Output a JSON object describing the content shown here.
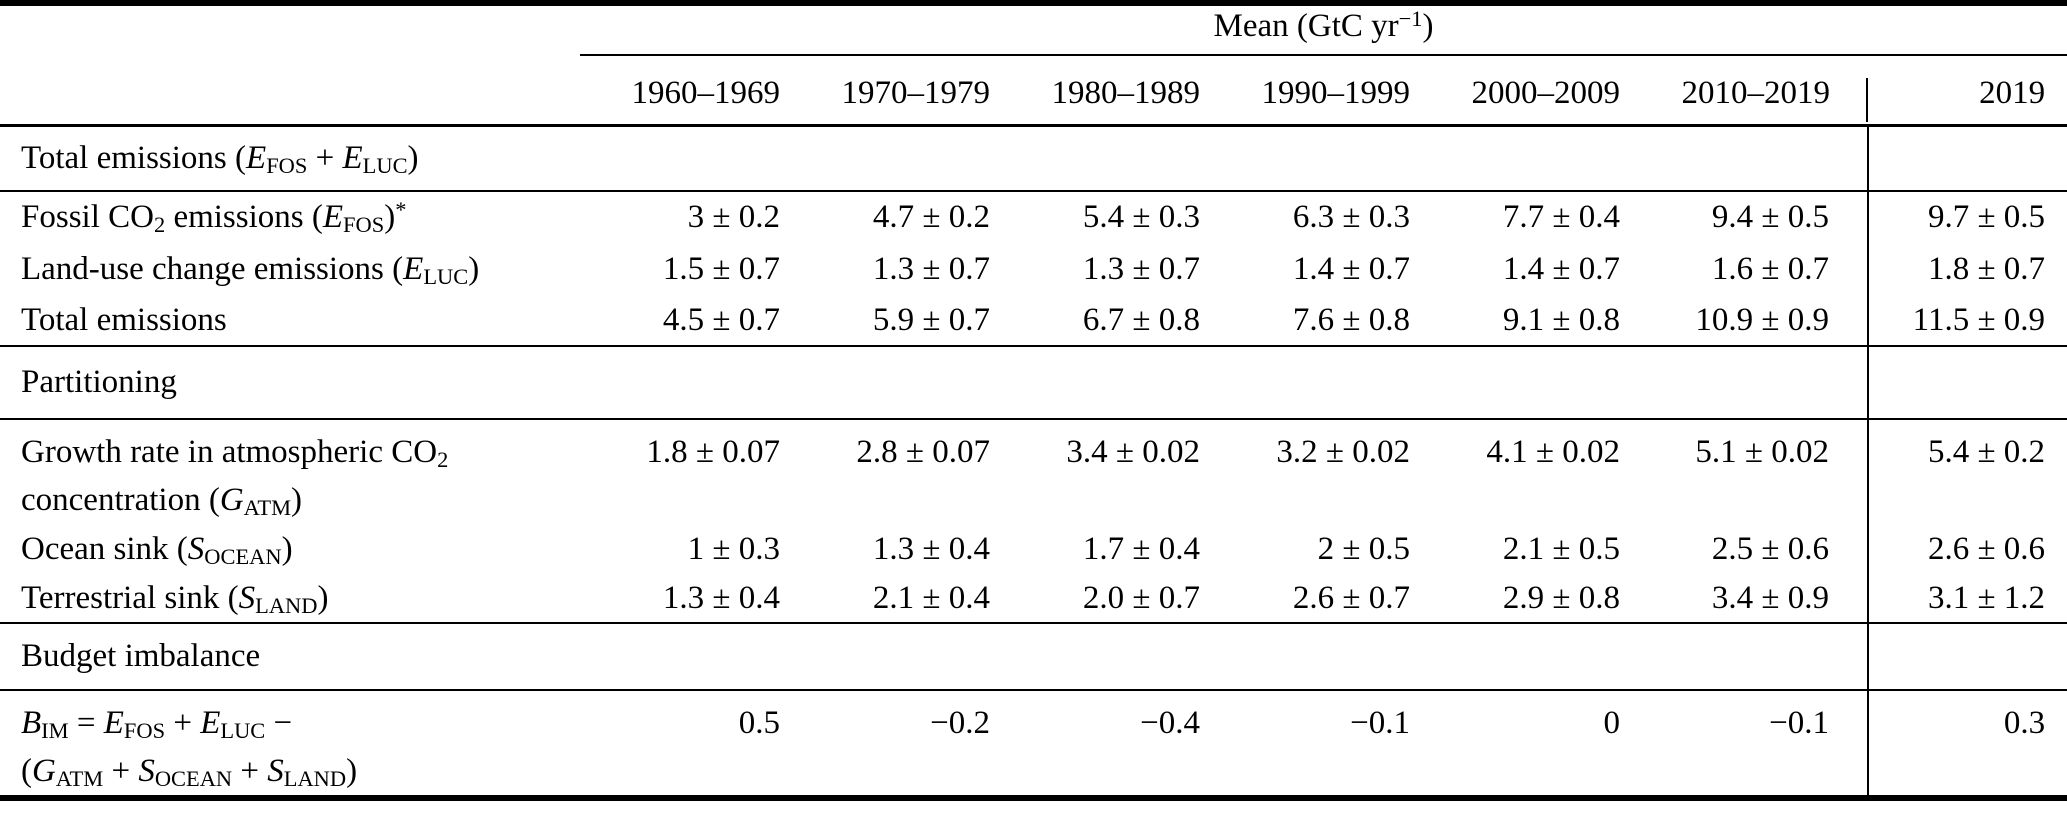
{
  "table": {
    "unit_header": [
      {
        "s": "Mean (GtC yr"
      },
      {
        "sup": "−1"
      },
      {
        "s": ")"
      }
    ],
    "columns": [
      "1960–1969",
      "1970–1979",
      "1980–1989",
      "1990–1999",
      "2000–2009",
      "2010–2019",
      "2019"
    ],
    "sections": [
      {
        "name": "total-emissions-section",
        "header_lines": [
          [
            {
              "s": "Total emissions ("
            },
            {
              "i": "E"
            },
            {
              "sub": "FOS"
            },
            {
              "s": " + "
            },
            {
              "i": "E"
            },
            {
              "sub": "LUC"
            },
            {
              "s": ")"
            }
          ]
        ],
        "rows": [
          {
            "name": "fossil-co2-emissions",
            "label_lines": [
              [
                {
                  "s": "Fossil CO"
                },
                {
                  "sub": "2"
                },
                {
                  "s": " emissions ("
                },
                {
                  "i": "E"
                },
                {
                  "sub": "FOS"
                },
                {
                  "s": ")"
                },
                {
                  "sup": "*"
                }
              ]
            ],
            "values": [
              "3 ± 0.2",
              "4.7 ± 0.2",
              "5.4 ± 0.3",
              "6.3 ± 0.3",
              "7.7 ± 0.4",
              "9.4 ± 0.5",
              "9.7 ± 0.5"
            ]
          },
          {
            "name": "land-use-change-emissions",
            "label_lines": [
              [
                {
                  "s": "Land-use change emissions ("
                },
                {
                  "i": "E"
                },
                {
                  "sub": "LUC"
                },
                {
                  "s": ")"
                }
              ]
            ],
            "values": [
              "1.5 ± 0.7",
              "1.3 ± 0.7",
              "1.3 ± 0.7",
              "1.4 ± 0.7",
              "1.4 ± 0.7",
              "1.6 ± 0.7",
              "1.8 ± 0.7"
            ]
          },
          {
            "name": "total-emissions",
            "label_lines": [
              [
                {
                  "s": "Total emissions"
                }
              ]
            ],
            "values": [
              "4.5 ± 0.7",
              "5.9 ± 0.7",
              "6.7 ± 0.8",
              "7.6 ± 0.8",
              "9.1 ± 0.8",
              "10.9 ± 0.9",
              "11.5 ± 0.9"
            ]
          }
        ]
      },
      {
        "name": "partitioning-section",
        "header_lines": [
          [
            {
              "s": "Partitioning"
            }
          ]
        ],
        "rows": [
          {
            "name": "growth-rate-atmospheric-co2",
            "label_lines": [
              [
                {
                  "s": "Growth rate in atmospheric CO"
                },
                {
                  "sub": "2"
                }
              ],
              [
                {
                  "s": "concentration ("
                },
                {
                  "i": "G"
                },
                {
                  "sub": "ATM"
                },
                {
                  "s": ")"
                }
              ]
            ],
            "values": [
              "1.8 ± 0.07",
              "2.8 ± 0.07",
              "3.4 ± 0.02",
              "3.2 ± 0.02",
              "4.1 ± 0.02",
              "5.1 ± 0.02",
              "5.4 ± 0.2"
            ]
          },
          {
            "name": "ocean-sink",
            "label_lines": [
              [
                {
                  "s": "Ocean sink ("
                },
                {
                  "i": "S"
                },
                {
                  "sub": "OCEAN"
                },
                {
                  "s": ")"
                }
              ]
            ],
            "values": [
              "1 ± 0.3",
              "1.3 ± 0.4",
              "1.7 ± 0.4",
              "2 ± 0.5",
              "2.1 ± 0.5",
              "2.5 ± 0.6",
              "2.6 ± 0.6"
            ]
          },
          {
            "name": "terrestrial-sink",
            "label_lines": [
              [
                {
                  "s": "Terrestrial sink ("
                },
                {
                  "i": "S"
                },
                {
                  "sub": "LAND"
                },
                {
                  "s": ")"
                }
              ]
            ],
            "values": [
              "1.3 ± 0.4",
              "2.1 ± 0.4",
              "2.0 ± 0.7",
              "2.6 ± 0.7",
              "2.9 ± 0.8",
              "3.4 ± 0.9",
              "3.1 ± 1.2"
            ]
          }
        ]
      },
      {
        "name": "budget-imbalance-section",
        "header_lines": [
          [
            {
              "s": "Budget imbalance"
            }
          ]
        ],
        "rows": [
          {
            "name": "budget-imbalance-formula",
            "label_lines": [
              [
                {
                  "i": "B"
                },
                {
                  "sub": "IM"
                },
                {
                  "s": " = "
                },
                {
                  "i": "E"
                },
                {
                  "sub": "FOS"
                },
                {
                  "s": " + "
                },
                {
                  "i": "E"
                },
                {
                  "sub": "LUC"
                },
                {
                  "s": " −"
                }
              ],
              [
                {
                  "s": "("
                },
                {
                  "i": "G"
                },
                {
                  "sub": "ATM"
                },
                {
                  "s": " + "
                },
                {
                  "i": "S"
                },
                {
                  "sub": "OCEAN"
                },
                {
                  "s": " + "
                },
                {
                  "i": "S"
                },
                {
                  "sub": "LAND"
                },
                {
                  "s": ")"
                }
              ]
            ],
            "values": [
              "0.5",
              "−0.2",
              "−0.4",
              "−0.1",
              "0",
              "−0.1",
              "0.3"
            ]
          }
        ]
      }
    ],
    "colors": {
      "text": "#000000",
      "background": "#ffffff",
      "rule": "#000000"
    }
  }
}
